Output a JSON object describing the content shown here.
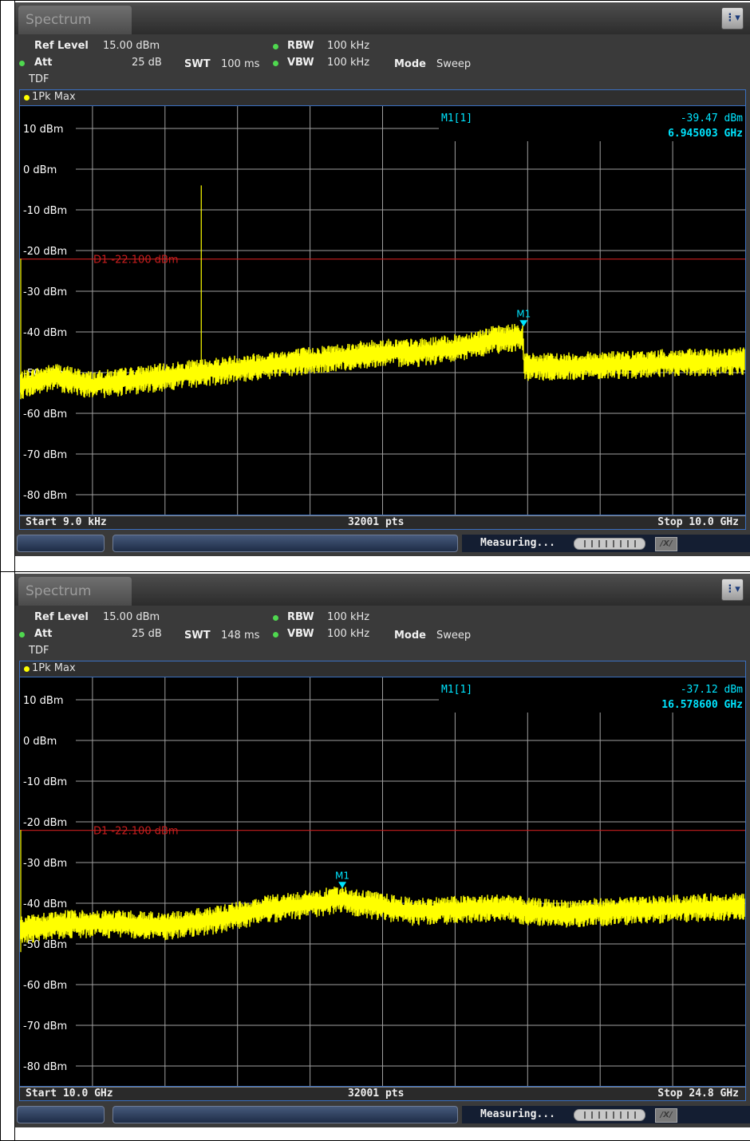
{
  "colors": {
    "trace": "#ffff00",
    "marker": "#00e5ff",
    "display_line": "#c81e1e",
    "grid": "#a0a0a0",
    "label": "#ffffff"
  },
  "screens": [
    {
      "tab_label": "Spectrum",
      "menu_icon": "menu-icon",
      "settings": {
        "ref_level_label": "Ref Level",
        "ref_level_value": "15.00 dBm",
        "att_label": "Att",
        "att_value": "25 dB",
        "swt_label": "SWT",
        "swt_value": "100 ms",
        "rbw_label": "RBW",
        "rbw_value": "100 kHz",
        "vbw_label": "VBW",
        "vbw_value": "100 kHz",
        "mode_label": "Mode",
        "mode_value": "Sweep",
        "tdf": "TDF"
      },
      "trace_label": "1Pk Max",
      "y_ticks": [
        "10 dBm",
        "0 dBm",
        "-10 dBm",
        "-20 dBm",
        "-30 dBm",
        "-40 dBm",
        "-50 dBm",
        "-60 dBm",
        "-70 dBm",
        "-80 dBm"
      ],
      "marker_readout": {
        "name": "M1[1]",
        "level": "-39.47 dBm",
        "freq": "6.945003 GHz"
      },
      "marker_label": "M1",
      "display_line_label": "D1  -22.100 dBm",
      "footer": {
        "start": "Start 9.0 kHz",
        "points": "32001 pts",
        "stop": "Stop 10.0 GHz"
      },
      "status": {
        "measuring": "Measuring...",
        "xy_icon": "xy-swap-icon"
      }
    },
    {
      "tab_label": "Spectrum",
      "menu_icon": "menu-icon",
      "settings": {
        "ref_level_label": "Ref Level",
        "ref_level_value": "15.00 dBm",
        "att_label": "Att",
        "att_value": "25 dB",
        "swt_label": "SWT",
        "swt_value": "148 ms",
        "rbw_label": "RBW",
        "rbw_value": "100 kHz",
        "vbw_label": "VBW",
        "vbw_value": "100 kHz",
        "mode_label": "Mode",
        "mode_value": "Sweep",
        "tdf": "TDF"
      },
      "trace_label": "1Pk Max",
      "y_ticks": [
        "10 dBm",
        "0 dBm",
        "-10 dBm",
        "-20 dBm",
        "-30 dBm",
        "-40 dBm",
        "-50 dBm",
        "-60 dBm",
        "-70 dBm",
        "-80 dBm"
      ],
      "marker_readout": {
        "name": "M1[1]",
        "level": "-37.12 dBm",
        "freq": "16.578600 GHz"
      },
      "marker_label": "M1",
      "display_line_label": "D1  -22.100 dBm",
      "footer": {
        "start": "Start 10.0 GHz",
        "points": "32001 pts",
        "stop": "Stop 24.8 GHz"
      },
      "status": {
        "measuring": "Measuring...",
        "xy_icon": "xy-swap-icon"
      }
    }
  ],
  "chart_data": [
    {
      "type": "line",
      "x_unit": "GHz",
      "y_unit": "dBm",
      "xlim": [
        9e-06,
        10.0
      ],
      "ylim": [
        -90,
        15
      ],
      "display_line": -22.1,
      "marker": {
        "x": 6.945003,
        "y": -39.47
      },
      "series": [
        {
          "x": [
            9e-06,
            0.5,
            1.0,
            1.5,
            2.0,
            2.5,
            3.0,
            3.5,
            4.0,
            4.5,
            5.0,
            5.5,
            6.0,
            6.5,
            6.94,
            6.96,
            7.5,
            8.0,
            8.5,
            9.0,
            9.5,
            10.0
          ],
          "y": [
            -53,
            -51,
            -53,
            -52,
            -51,
            -50,
            -49,
            -48,
            -47,
            -46,
            -45,
            -45,
            -44,
            -42,
            -41,
            -48.5,
            -48.5,
            -48,
            -48,
            -47.5,
            -47.5,
            -47
          ]
        }
      ],
      "spur": {
        "x": 2.5,
        "y": -4
      }
    },
    {
      "type": "line",
      "x_unit": "GHz",
      "y_unit": "dBm",
      "xlim": [
        10.0,
        24.8
      ],
      "ylim": [
        -90,
        15
      ],
      "display_line": -22.1,
      "marker": {
        "x": 16.5786,
        "y": -37.12
      },
      "series": [
        {
          "x": [
            10.0,
            11.0,
            12.0,
            13.0,
            14.0,
            15.0,
            16.0,
            16.58,
            17.0,
            18.0,
            19.0,
            20.0,
            20.4,
            21.0,
            22.0,
            23.0,
            24.0,
            24.8
          ],
          "y": [
            -46.5,
            -45,
            -45,
            -45.5,
            -44,
            -41.5,
            -40,
            -39,
            -40,
            -42,
            -41.5,
            -41,
            -42,
            -42.5,
            -42,
            -41.5,
            -41,
            -40.5
          ]
        }
      ]
    }
  ]
}
